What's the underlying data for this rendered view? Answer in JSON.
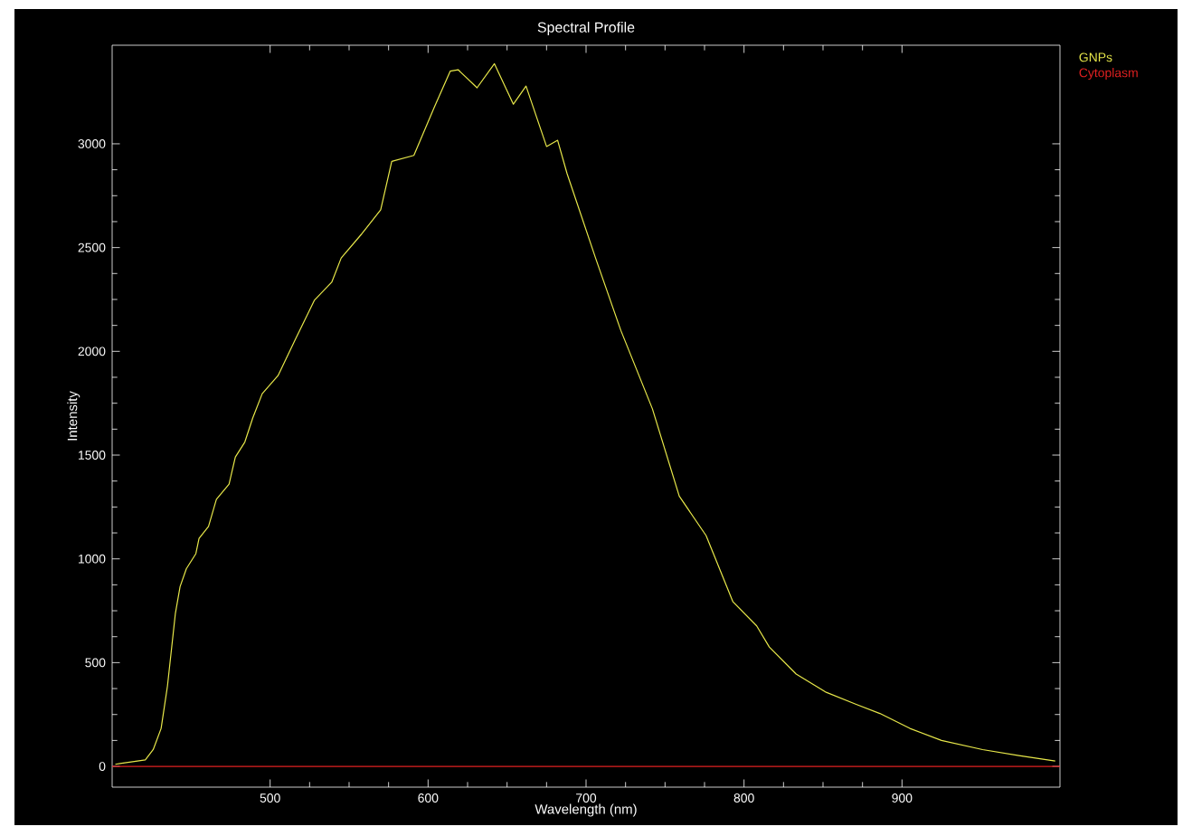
{
  "chart_data": {
    "type": "line",
    "title": "Spectral Profile",
    "xlabel": "Wavelength (nm)",
    "ylabel": "Intensity",
    "xlim": [
      400,
      1000
    ],
    "ylim": [
      -100,
      3475
    ],
    "xticks": [
      500,
      600,
      700,
      800,
      900
    ],
    "yticks": [
      0,
      500,
      1000,
      1500,
      2000,
      2500,
      3000
    ],
    "legend": "top right",
    "grid": false,
    "series": [
      {
        "name": "GNPs",
        "color": "#e8e84a",
        "x": [
          402,
          405,
          421,
          426,
          431,
          435,
          440,
          443,
          447,
          453,
          455,
          461,
          466,
          474,
          478,
          484,
          489,
          495,
          505,
          516,
          528,
          539,
          545,
          558,
          570,
          577,
          591,
          604,
          614,
          619,
          631,
          642,
          654,
          662,
          675,
          682,
          688,
          706,
          722,
          742,
          759,
          776,
          793,
          808,
          816,
          833,
          852,
          871,
          886,
          905,
          925,
          951,
          974,
          997
        ],
        "values": [
          10,
          14,
          31,
          81,
          183,
          386,
          735,
          866,
          953,
          1025,
          1098,
          1156,
          1287,
          1360,
          1491,
          1563,
          1679,
          1796,
          1883,
          2058,
          2246,
          2333,
          2450,
          2566,
          2682,
          2915,
          2944,
          3177,
          3350,
          3357,
          3270,
          3386,
          3191,
          3278,
          2987,
          3017,
          2856,
          2450,
          2101,
          1723,
          1302,
          1112,
          793,
          677,
          575,
          445,
          357,
          299,
          255,
          183,
          125,
          81,
          52,
          26
        ]
      },
      {
        "name": "Cytoplasm",
        "color": "#e02020",
        "x": [
          400,
          450,
          500,
          550,
          600,
          650,
          700,
          750,
          800,
          850,
          900,
          950,
          1000
        ],
        "values": [
          0,
          0,
          0,
          0,
          0,
          0,
          0,
          0,
          0,
          0,
          0,
          0,
          0
        ]
      }
    ]
  }
}
